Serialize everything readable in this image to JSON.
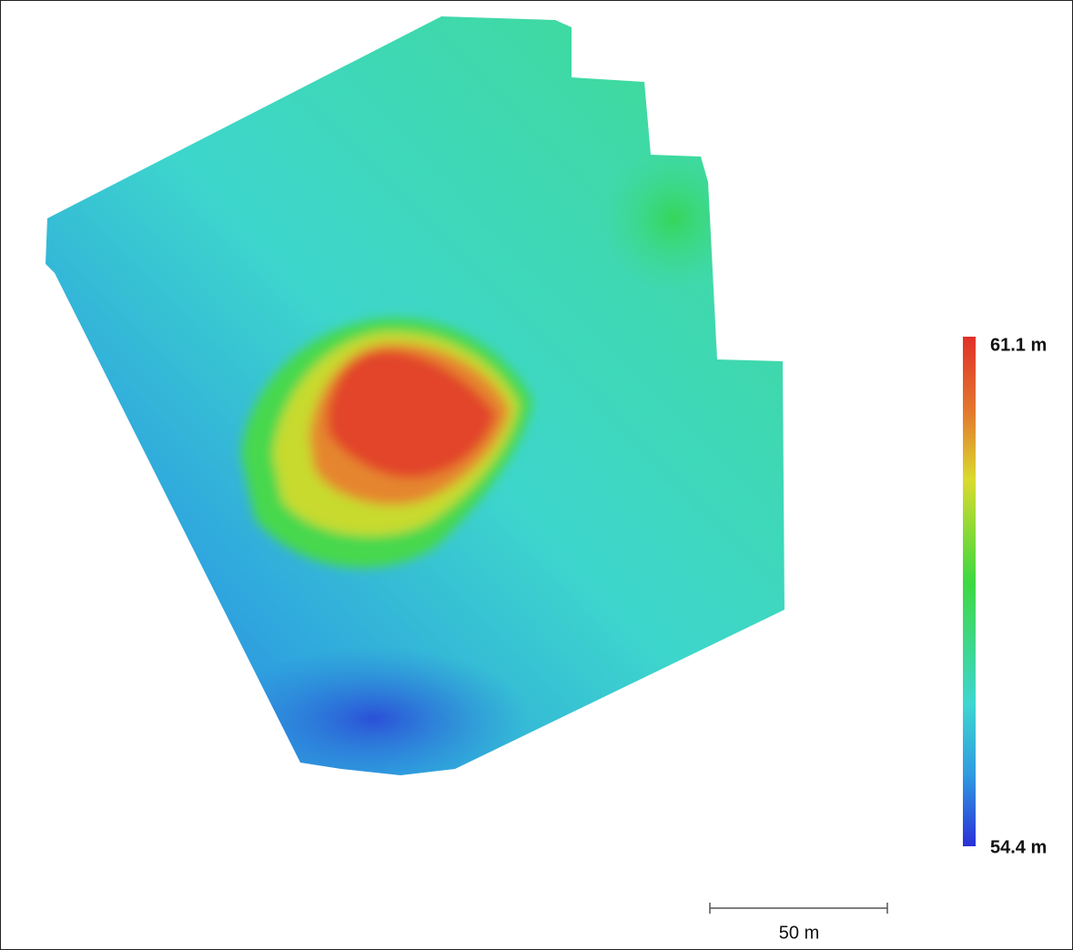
{
  "legend": {
    "max_label": "61.1 m",
    "min_label": "54.4 m"
  },
  "scale_bar": {
    "label": "50 m"
  }
}
